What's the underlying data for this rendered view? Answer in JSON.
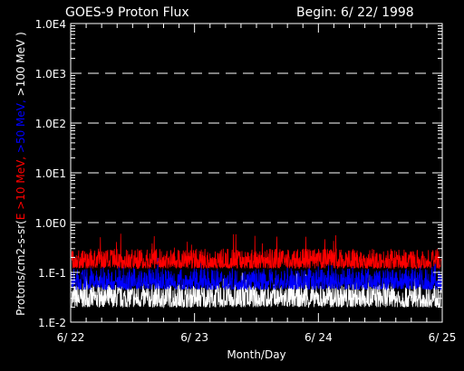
{
  "chart_data": {
    "type": "line",
    "title": "GOES-9 Proton Flux",
    "begin_label": "Begin: 6/ 22/ 1998",
    "xlabel": "Month/Day",
    "ylabel_parts": [
      {
        "text": "Protons/cm2-s-sr(",
        "color": "#ffffff"
      },
      {
        "text": "E >10 MeV, ",
        "color": "#ff0000"
      },
      {
        "text": ">50 MeV, ",
        "color": "#0000ff"
      },
      {
        "text": ">100 MeV )",
        "color": "#ffffff"
      }
    ],
    "y_scale": "log",
    "ylim": [
      0.01,
      10000
    ],
    "y_ticks": [
      {
        "value": 0.01,
        "label": "1.E-2"
      },
      {
        "value": 0.1,
        "label": "1.E-1"
      },
      {
        "value": 1,
        "label": "1.0E0"
      },
      {
        "value": 10,
        "label": "1.0E1"
      },
      {
        "value": 100,
        "label": "1.0E2"
      },
      {
        "value": 1000,
        "label": "1.0E3"
      },
      {
        "value": 10000,
        "label": "1.0E4"
      }
    ],
    "x_ticks": [
      "6/ 22",
      "6/ 23",
      "6/ 24",
      "6/ 25"
    ],
    "xlim": [
      "1998-06-22",
      "1998-06-25"
    ],
    "grid_dashed_at": [
      1,
      10,
      100,
      1000
    ],
    "series": [
      {
        "name": "E >10 MeV",
        "color": "#ff0000",
        "typical_low": 0.12,
        "typical_high": 0.3,
        "peak": 0.6
      },
      {
        "name": ">50 MeV",
        "color": "#0000ff",
        "typical_low": 0.045,
        "typical_high": 0.12,
        "peak": 0.2
      },
      {
        "name": ">100 MeV",
        "color": "#ffffff",
        "typical_low": 0.02,
        "typical_high": 0.06,
        "peak": 0.1
      }
    ]
  }
}
